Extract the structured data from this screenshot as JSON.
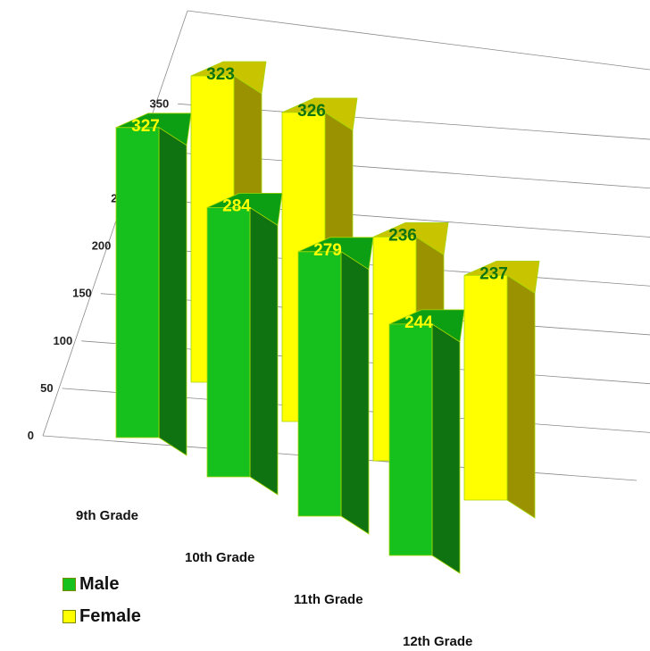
{
  "chart_data": {
    "type": "bar",
    "categories": [
      "9th Grade",
      "10th Grade",
      "11th Grade",
      "12th Grade"
    ],
    "series": [
      {
        "name": "Male",
        "values": [
          327,
          284,
          279,
          244
        ]
      },
      {
        "name": "Female",
        "values": [
          323,
          326,
          236,
          237
        ]
      }
    ],
    "yticks": [
      "0",
      "50",
      "100",
      "150",
      "200",
      "250",
      "300",
      "350"
    ],
    "ylim": [
      0,
      350
    ],
    "title": "",
    "xlabel": "",
    "ylabel": "",
    "grid": true,
    "legend_position": "bottom-left",
    "colors": {
      "male_front": "#16c11e",
      "male_side": "#0e7310",
      "male_top": "#0c9f14",
      "female_front": "#ffff00",
      "female_side": "#9a9200",
      "female_top": "#c9c400",
      "male_label": "#ffff00",
      "female_label": "#0e7310",
      "grid": "#8a8a8a"
    }
  },
  "legend": {
    "male": "Male",
    "female": "Female"
  }
}
